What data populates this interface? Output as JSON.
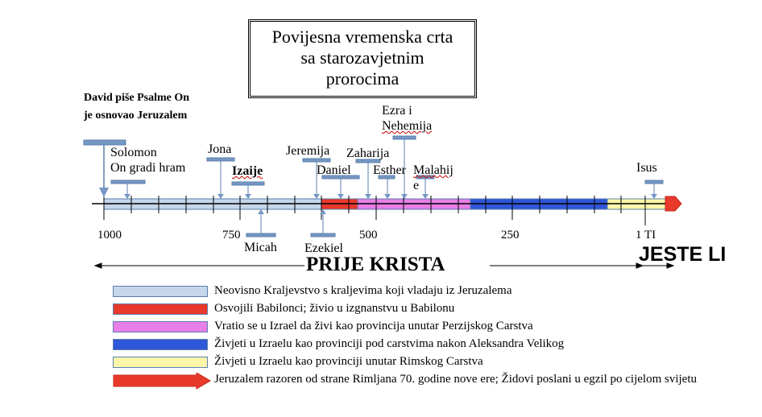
{
  "title": [
    "Povijesna vremenska crta",
    "sa starozavjetnim",
    "prorocima"
  ],
  "david_note": [
    "David piše Psalme On",
    "je osnovao Jeruzalem"
  ],
  "prophets": {
    "solomon": [
      "Solomon",
      "On gradi hram"
    ],
    "jona": "Jona",
    "izaije": "Izaije",
    "micah": "Micah",
    "jeremija": "Jeremija",
    "ezekiel": "Ezekiel",
    "daniel": "Daniel",
    "zaharija": "Zaharija",
    "ezra": [
      "Ezra i",
      "Nehemija"
    ],
    "esther": "Esther",
    "malahija": [
      "Malahij",
      "e"
    ],
    "isus": "Isus"
  },
  "axis_labels": [
    "1000",
    "750",
    "500",
    "250",
    "1 TI"
  ],
  "era_left": "PRIJE KRISTA",
  "era_right": "JESTE LI",
  "colors": {
    "kingdom": "#c5d6ea",
    "babylon": "#e8392b",
    "persia": "#e87ee8",
    "greek": "#2f57d9",
    "rome": "#fbf6a9",
    "destroyed": "#e8392b",
    "marker": "#7597c4"
  },
  "legend": [
    {
      "key": "kingdom",
      "text": "Neovisno Kraljevstvo s kraljevima koji vladaju iz Jeruzalema"
    },
    {
      "key": "babylon",
      "text": "Osvojili Babilonci; živio u izgnanstvu u Babilonu"
    },
    {
      "key": "persia",
      "text": "Vratio se u Izrael da živi kao provincija unutar Perzijskog Carstva"
    },
    {
      "key": "greek",
      "text": "Živjeti u Izraelu kao provinciji pod carstvima nakon Aleksandra Velikog"
    },
    {
      "key": "rome",
      "text": "Živjeti u Izraelu kao provinciji unutar Rimskog Carstva"
    },
    {
      "key": "destroyed",
      "text": "Jeruzalem razoren od strane Rimljana 70. godine nove ere; Židovi poslani u egzil po cijelom svijetu"
    }
  ]
}
